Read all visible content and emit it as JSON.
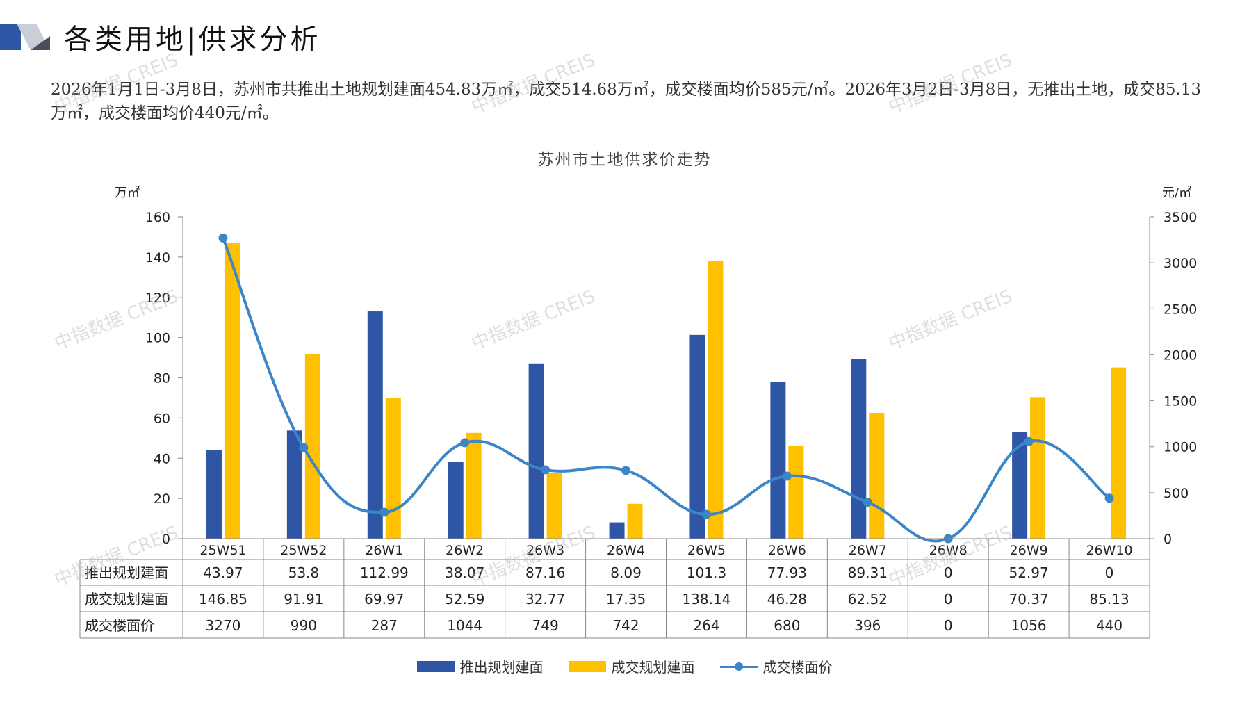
{
  "header": {
    "title": "各类用地|供求分析"
  },
  "summary": "2026年1月1日-3月8日，苏州市共推出土地规划建面454.83万㎡，成交514.68万㎡，成交楼面均价585元/㎡。2026年3月2日-3月8日，无推出土地，成交85.13万㎡，成交楼面均价440元/㎡。",
  "watermark": "中指数据 CREIS",
  "colors": {
    "supply": "#2e55a6",
    "deal": "#ffc000",
    "price": "#3b86c8"
  },
  "chart_data": {
    "type": "bar",
    "title": "苏州市土地供求价走势",
    "left_unit": "万㎡",
    "right_unit": "元/㎡",
    "categories": [
      "25W51",
      "25W52",
      "26W1",
      "26W2",
      "26W3",
      "26W4",
      "26W5",
      "26W6",
      "26W7",
      "26W8",
      "26W9",
      "26W10"
    ],
    "series": [
      {
        "name": "推出规划建面",
        "type": "bar",
        "axis": "left",
        "values": [
          43.97,
          53.8,
          112.99,
          38.07,
          87.16,
          8.09,
          101.3,
          77.93,
          89.31,
          0,
          52.97,
          0
        ]
      },
      {
        "name": "成交规划建面",
        "type": "bar",
        "axis": "left",
        "values": [
          146.85,
          91.91,
          69.97,
          52.59,
          32.77,
          17.35,
          138.14,
          46.28,
          62.52,
          0,
          70.37,
          85.13
        ]
      },
      {
        "name": "成交楼面价",
        "type": "line",
        "axis": "right",
        "values": [
          3270,
          990,
          287,
          1044,
          749,
          742,
          264,
          680,
          396,
          0,
          1056,
          440
        ]
      }
    ],
    "table_values": [
      [
        "43.97",
        "53.8",
        "112.99",
        "38.07",
        "87.16",
        "8.09",
        "101.3",
        "77.93",
        "89.31",
        "0",
        "52.97",
        "0"
      ],
      [
        "146.85",
        "91.91",
        "69.97",
        "52.59",
        "32.77",
        "17.35",
        "138.14",
        "46.28",
        "62.52",
        "0",
        "70.37",
        "85.13"
      ],
      [
        "3270",
        "990",
        "287",
        "1044",
        "749",
        "742",
        "264",
        "680",
        "396",
        "0",
        "1056",
        "440"
      ]
    ],
    "ylim_left": [
      0,
      160
    ],
    "ylim_right": [
      0,
      3500
    ],
    "yticks_left": [
      0,
      20,
      40,
      60,
      80,
      100,
      120,
      140,
      160
    ],
    "yticks_right": [
      0,
      500,
      1000,
      1500,
      2000,
      2500,
      3000,
      3500
    ],
    "grid": false,
    "legend_position": "bottom"
  }
}
